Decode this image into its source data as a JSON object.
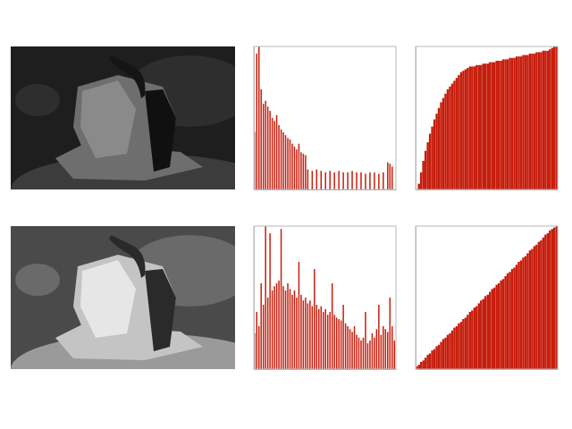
{
  "chart_data": [
    {
      "type": "histogram",
      "color": "#c61d0c",
      "tick_labels": false,
      "xlim": [
        0,
        256
      ],
      "ylim": [
        0,
        100
      ],
      "bins": [
        0,
        4,
        8,
        12,
        16,
        20,
        24,
        28,
        32,
        36,
        40,
        44,
        48,
        52,
        56,
        60,
        64,
        68,
        72,
        76,
        80,
        84,
        88,
        92,
        96,
        100,
        104,
        108,
        112,
        116,
        120,
        124,
        128,
        132,
        136,
        140,
        144,
        148,
        152,
        156,
        160,
        164,
        168,
        172,
        176,
        180,
        184,
        188,
        192,
        196,
        200,
        204,
        208,
        212,
        216,
        220,
        224,
        228,
        232,
        236,
        240,
        244,
        248,
        252,
        256
      ],
      "values": [
        40,
        95,
        100,
        70,
        60,
        62,
        58,
        55,
        50,
        48,
        52,
        45,
        42,
        40,
        38,
        36,
        35,
        32,
        30,
        28,
        32,
        26,
        25,
        24,
        14,
        0,
        13,
        0,
        14,
        0,
        13,
        0,
        12,
        0,
        13,
        0,
        12,
        0,
        13,
        0,
        12,
        0,
        12,
        0,
        13,
        0,
        12,
        0,
        12,
        0,
        11,
        0,
        12,
        0,
        12,
        0,
        11,
        0,
        12,
        0,
        19,
        18,
        16,
        0
      ]
    },
    {
      "type": "histogram",
      "color": "#c61d0c",
      "tick_labels": false,
      "xlim": [
        0,
        256
      ],
      "ylim": [
        0,
        100
      ],
      "bins": [
        0,
        4,
        8,
        12,
        16,
        20,
        24,
        28,
        32,
        36,
        40,
        44,
        48,
        52,
        56,
        60,
        64,
        68,
        72,
        76,
        80,
        84,
        88,
        92,
        96,
        100,
        104,
        108,
        112,
        116,
        120,
        124,
        128,
        132,
        136,
        140,
        144,
        148,
        152,
        156,
        160,
        164,
        168,
        172,
        176,
        180,
        184,
        188,
        192,
        196,
        200,
        204,
        208,
        212,
        216,
        220,
        224,
        228,
        232,
        236,
        240,
        244,
        248,
        252,
        256
      ],
      "values": [
        0,
        4,
        12,
        20,
        27,
        33,
        39,
        44,
        49,
        53,
        57,
        61,
        64,
        67,
        70,
        72,
        74,
        76,
        78,
        80,
        82,
        83,
        84,
        85,
        86,
        86,
        86,
        87,
        87,
        87,
        88,
        88,
        88,
        89,
        89,
        89,
        90,
        90,
        90,
        91,
        91,
        91,
        92,
        92,
        92,
        93,
        93,
        93,
        94,
        94,
        94,
        95,
        95,
        95,
        96,
        96,
        96,
        97,
        97,
        97,
        98,
        99,
        100,
        100
      ]
    },
    {
      "type": "histogram",
      "color": "#c61d0c",
      "tick_labels": false,
      "xlim": [
        0,
        256
      ],
      "ylim": [
        0,
        100
      ],
      "bins": [
        0,
        4,
        8,
        12,
        16,
        20,
        24,
        28,
        32,
        36,
        40,
        44,
        48,
        52,
        56,
        60,
        64,
        68,
        72,
        76,
        80,
        84,
        88,
        92,
        96,
        100,
        104,
        108,
        112,
        116,
        120,
        124,
        128,
        132,
        136,
        140,
        144,
        148,
        152,
        156,
        160,
        164,
        168,
        172,
        176,
        180,
        184,
        188,
        192,
        196,
        200,
        204,
        208,
        212,
        216,
        220,
        224,
        228,
        232,
        236,
        240,
        244,
        248,
        252,
        256
      ],
      "values": [
        25,
        40,
        30,
        60,
        45,
        100,
        50,
        95,
        55,
        58,
        60,
        62,
        98,
        58,
        55,
        60,
        56,
        52,
        55,
        50,
        75,
        52,
        48,
        50,
        46,
        48,
        44,
        70,
        45,
        42,
        44,
        40,
        42,
        38,
        40,
        60,
        38,
        36,
        35,
        34,
        45,
        32,
        30,
        28,
        26,
        30,
        24,
        22,
        20,
        22,
        40,
        18,
        20,
        25,
        22,
        28,
        45,
        24,
        30,
        28,
        26,
        50,
        30,
        20
      ]
    },
    {
      "type": "histogram",
      "color": "#c61d0c",
      "tick_labels": false,
      "xlim": [
        0,
        256
      ],
      "ylim": [
        0,
        100
      ],
      "bins": [
        0,
        4,
        8,
        12,
        16,
        20,
        24,
        28,
        32,
        36,
        40,
        44,
        48,
        52,
        56,
        60,
        64,
        68,
        72,
        76,
        80,
        84,
        88,
        92,
        96,
        100,
        104,
        108,
        112,
        116,
        120,
        124,
        128,
        132,
        136,
        140,
        144,
        148,
        152,
        156,
        160,
        164,
        168,
        172,
        176,
        180,
        184,
        188,
        192,
        196,
        200,
        204,
        208,
        212,
        216,
        220,
        224,
        228,
        232,
        236,
        240,
        244,
        248,
        252,
        256
      ],
      "values": [
        2,
        3,
        5,
        6,
        8,
        10,
        11,
        13,
        14,
        16,
        17,
        19,
        21,
        22,
        24,
        25,
        27,
        29,
        30,
        32,
        33,
        35,
        36,
        38,
        40,
        41,
        43,
        44,
        46,
        48,
        49,
        51,
        52,
        54,
        56,
        57,
        59,
        60,
        62,
        63,
        65,
        67,
        68,
        70,
        71,
        73,
        75,
        76,
        78,
        79,
        81,
        83,
        84,
        86,
        87,
        89,
        90,
        92,
        94,
        95,
        97,
        98,
        99,
        100
      ]
    }
  ]
}
